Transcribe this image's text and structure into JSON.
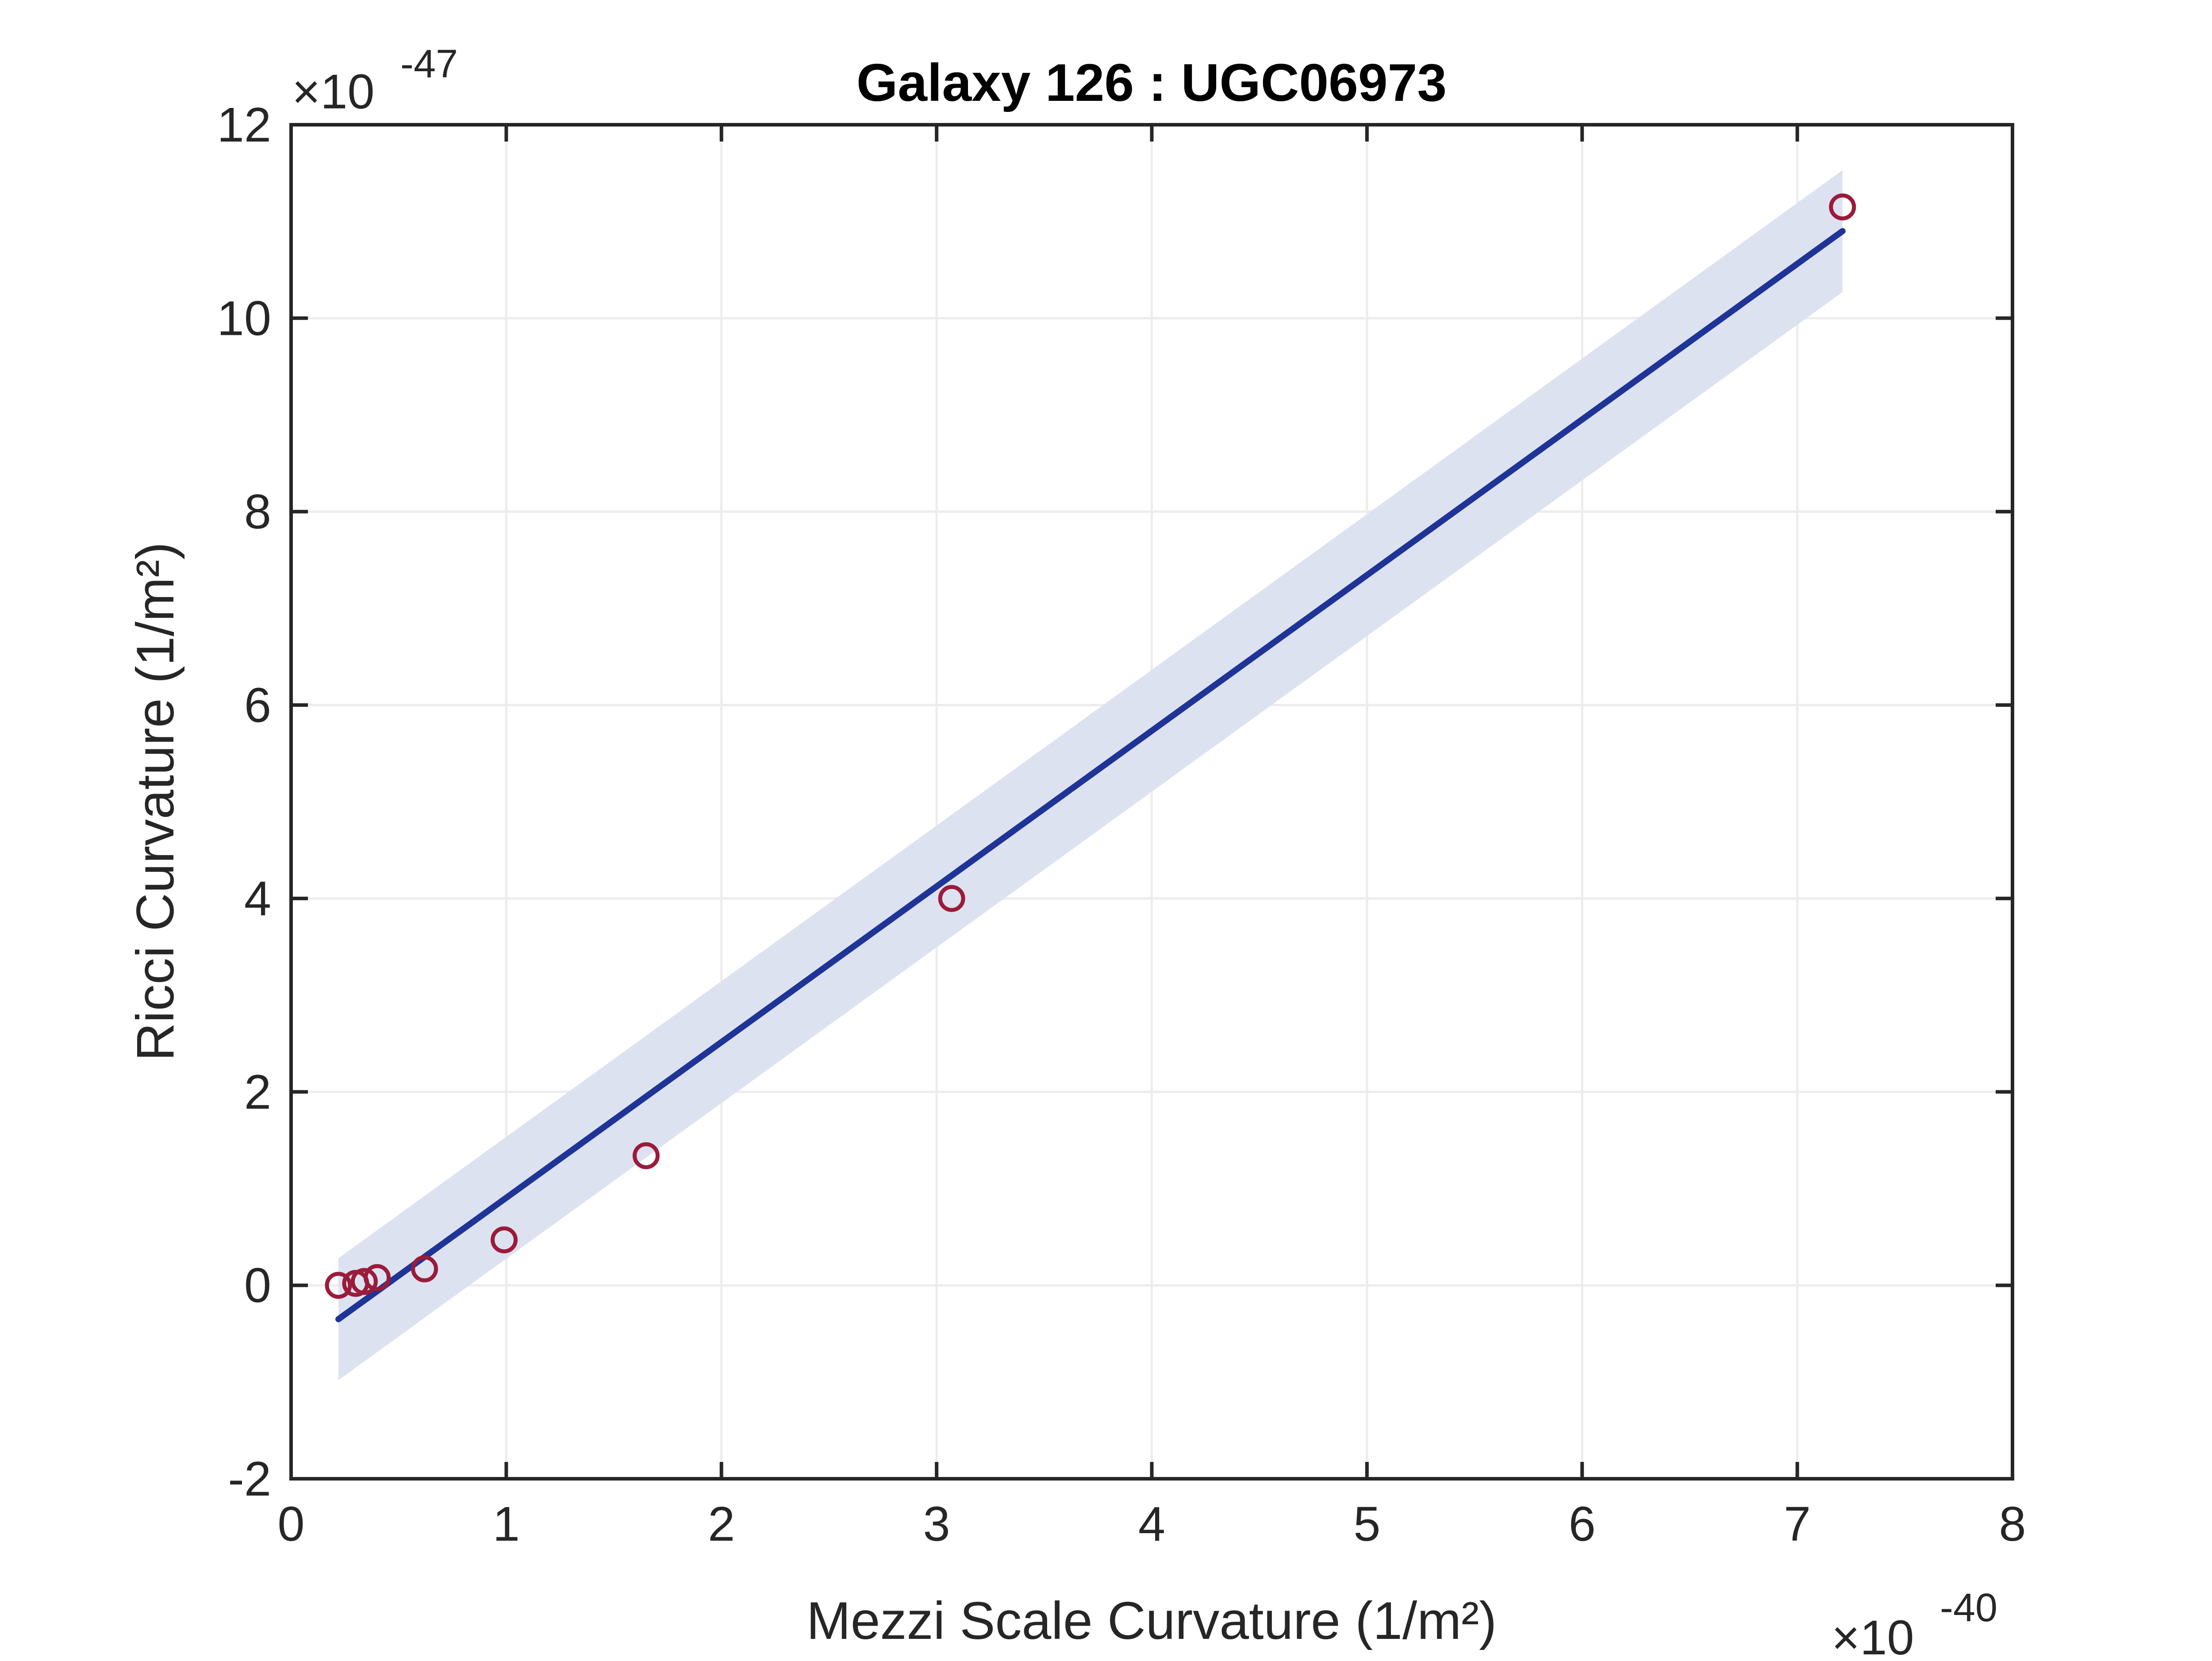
{
  "chart_data": {
    "type": "scatter",
    "title": "Galaxy 126 : UGC06973",
    "xlabel": "Mezzi Scale Curvature (1/m²)",
    "ylabel": "Ricci Curvature (1/m²)",
    "xlim": [
      0,
      8
    ],
    "ylim": [
      -2,
      12
    ],
    "x_exponent_label": "×10",
    "x_exponent": "-40",
    "y_exponent_label": "×10",
    "y_exponent": "-47",
    "xticks": [
      0,
      1,
      2,
      3,
      4,
      5,
      6,
      7,
      8
    ],
    "yticks": [
      -2,
      0,
      2,
      4,
      6,
      8,
      10,
      12
    ],
    "grid": true,
    "series": [
      {
        "kind": "scatter",
        "marker": "open-circle",
        "color": "#9b1b3a",
        "x": [
          0.22,
          0.3,
          0.34,
          0.4,
          0.62,
          0.99,
          1.65,
          3.07,
          7.21
        ],
        "y": [
          0.0,
          0.02,
          0.04,
          0.08,
          0.17,
          0.47,
          1.34,
          4.0,
          11.15
        ]
      },
      {
        "kind": "fit-line",
        "color": "#1f3497",
        "x": [
          0.22,
          7.21
        ],
        "y": [
          -0.35,
          10.9
        ]
      },
      {
        "kind": "confidence-band",
        "color": "#dde2f1",
        "x": [
          0.22,
          7.21
        ],
        "upper": [
          0.28,
          11.53
        ],
        "lower": [
          -0.98,
          10.27
        ]
      }
    ]
  }
}
